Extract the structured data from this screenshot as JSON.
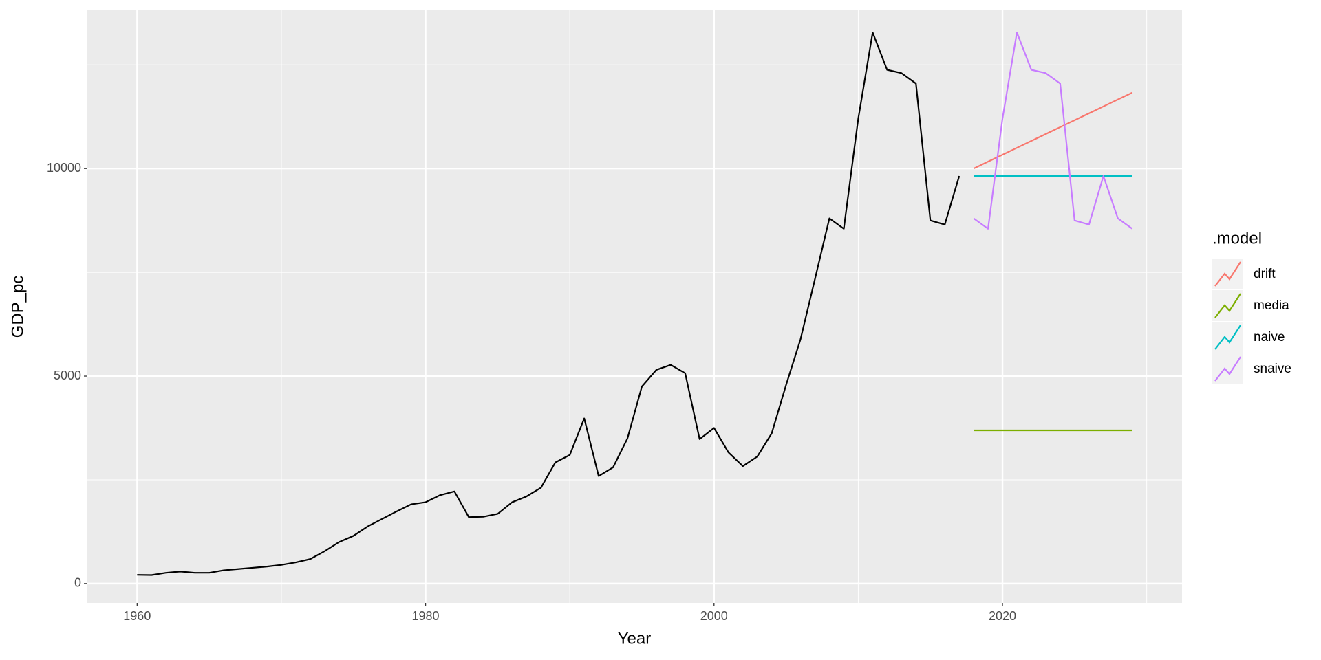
{
  "chart_data": {
    "type": "line",
    "x_label": "Year",
    "y_label": "GDP_pc",
    "legend_title": ".model",
    "xlim": [
      1956.55,
      2032.45
    ],
    "xticks": [
      1960,
      1980,
      2000,
      2020
    ],
    "xminor": [
      1970,
      1990,
      2010,
      2030
    ],
    "ylim": [
      -466,
      13813
    ],
    "yticks": [
      0,
      5000,
      10000
    ],
    "yminor": [
      2500,
      7500,
      12500
    ],
    "grid": true,
    "legend": "right",
    "series": [
      {
        "color": "#000000",
        "x": [
          1960,
          1961,
          1962,
          1963,
          1964,
          1965,
          1966,
          1967,
          1968,
          1969,
          1970,
          1971,
          1972,
          1973,
          1974,
          1975,
          1976,
          1977,
          1978,
          1979,
          1980,
          1981,
          1982,
          1983,
          1984,
          1985,
          1986,
          1987,
          1988,
          1989,
          1990,
          1991,
          1992,
          1993,
          1994,
          1995,
          1996,
          1997,
          1998,
          1999,
          2000,
          2001,
          2002,
          2003,
          2004,
          2005,
          2006,
          2007,
          2008,
          2009,
          2010,
          2011,
          2012,
          2013,
          2014,
          2015,
          2016,
          2017
        ],
        "values": [
          210,
          205,
          260,
          290,
          260,
          260,
          320,
          350,
          380,
          410,
          450,
          510,
          590,
          780,
          1000,
          1150,
          1380,
          1560,
          1740,
          1910,
          1960,
          2130,
          2220,
          1600,
          1610,
          1680,
          1960,
          2100,
          2310,
          2920,
          3100,
          3980,
          2590,
          2800,
          3500,
          4750,
          5150,
          5270,
          5070,
          3480,
          3750,
          3160,
          2830,
          3060,
          3620,
          4790,
          5890,
          7340,
          8800,
          8550,
          11200,
          13280,
          12380,
          12300,
          12050,
          8750,
          8650,
          9820
        ]
      },
      {
        "name": "drift",
        "color": "#f8766d",
        "x": [
          2018,
          2019,
          2020,
          2021,
          2022,
          2023,
          2024,
          2025,
          2026,
          2027,
          2028,
          2029
        ],
        "values": [
          10000,
          10166,
          10333,
          10499,
          10665,
          10832,
          10998,
          11164,
          11331,
          11497,
          11663,
          11830
        ]
      },
      {
        "name": "media",
        "color": "#7cae00",
        "x": [
          2018,
          2019,
          2020,
          2021,
          2022,
          2023,
          2024,
          2025,
          2026,
          2027,
          2028,
          2029
        ],
        "values": [
          3692,
          3692,
          3692,
          3692,
          3692,
          3692,
          3692,
          3692,
          3692,
          3692,
          3692,
          3692
        ]
      },
      {
        "name": "naive",
        "color": "#00bfc4",
        "x": [
          2018,
          2019,
          2020,
          2021,
          2022,
          2023,
          2024,
          2025,
          2026,
          2027,
          2028,
          2029
        ],
        "values": [
          9820,
          9820,
          9820,
          9820,
          9820,
          9820,
          9820,
          9820,
          9820,
          9820,
          9820,
          9820
        ]
      },
      {
        "name": "snaive",
        "color": "#c77cff",
        "x": [
          2018,
          2019,
          2020,
          2021,
          2022,
          2023,
          2024,
          2025,
          2026,
          2027,
          2028,
          2029
        ],
        "values": [
          8800,
          8550,
          11200,
          13280,
          12380,
          12300,
          12050,
          8750,
          8650,
          9820,
          8800,
          8550
        ]
      }
    ]
  }
}
